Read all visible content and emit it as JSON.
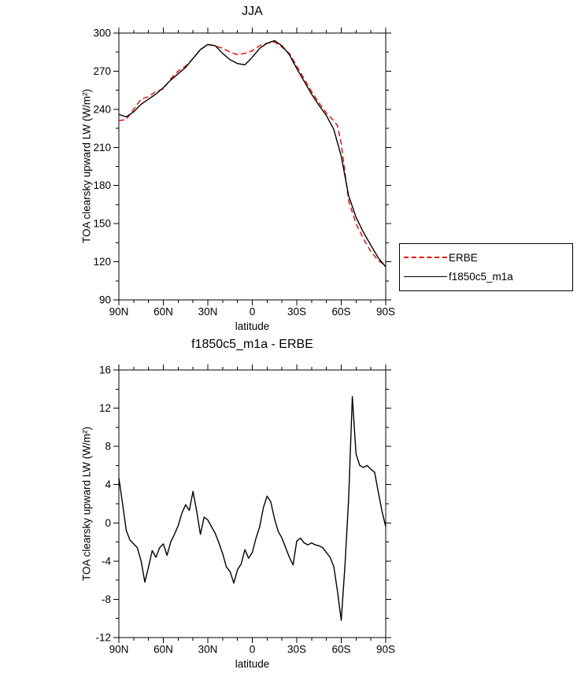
{
  "figure": {
    "background": "#ffffff"
  },
  "chart_data": {
    "note": "see charts array",
    "count": 2
  },
  "charts": [
    {
      "type": "line",
      "title": "JJA",
      "xlabel": "latitude",
      "ylabel": "TOA clearsky upward LW (W/m²)",
      "xlim": [
        90,
        -90
      ],
      "ylim": [
        90,
        300
      ],
      "xticks": [
        90,
        60,
        30,
        0,
        -30,
        -60,
        -90
      ],
      "xtick_labels": [
        "90N",
        "60N",
        "30N",
        "0",
        "30S",
        "60S",
        "90S"
      ],
      "yticks": [
        90,
        120,
        150,
        180,
        210,
        240,
        270,
        300
      ],
      "x_minor_step": 10,
      "y_minor_step": 15,
      "grid": false,
      "legend": {
        "position": "outside-right-bottom",
        "border": true
      },
      "series": [
        {
          "name": "ERBE",
          "color": "#ee0000",
          "style": "dashed",
          "x": [
            90,
            85,
            80,
            75,
            70,
            65,
            60,
            55,
            50,
            45,
            40,
            35,
            30,
            25,
            20,
            15,
            10,
            5,
            0,
            -5,
            -10,
            -15,
            -20,
            -25,
            -30,
            -35,
            -40,
            -45,
            -50,
            -55,
            -57.5,
            -60,
            -65,
            -70,
            -75,
            -80,
            -85,
            -90
          ],
          "y": [
            231,
            232,
            240,
            248,
            250,
            254,
            256,
            264,
            270,
            274,
            280,
            287,
            291,
            290,
            288,
            285,
            283,
            284,
            286,
            290,
            292,
            293,
            289,
            284,
            274,
            264,
            254,
            245,
            237,
            231,
            227,
            213,
            168,
            150,
            138,
            128,
            121,
            117
          ]
        },
        {
          "name": "f1850c5_m1a",
          "color": "#000000",
          "style": "solid",
          "x": [
            90,
            85,
            80,
            75,
            70,
            65,
            60,
            55,
            50,
            45,
            40,
            35,
            30,
            25,
            20,
            15,
            10,
            5,
            0,
            -5,
            -10,
            -15,
            -20,
            -25,
            -30,
            -35,
            -40,
            -45,
            -50,
            -55,
            -60,
            -65,
            -70,
            -75,
            -80,
            -85,
            -90
          ],
          "y": [
            236,
            234,
            238,
            244,
            248,
            252,
            257,
            263,
            268,
            273,
            280,
            287,
            291,
            290,
            284,
            279,
            276,
            275,
            281,
            288,
            292,
            294,
            290,
            283,
            272,
            262,
            252,
            243,
            235,
            224,
            203,
            172,
            155,
            143,
            133,
            123,
            116
          ]
        }
      ]
    },
    {
      "type": "line",
      "title": "f1850c5_m1a - ERBE",
      "xlabel": "latitude",
      "ylabel": "TOA clearsky upward LW (W/m²)",
      "xlim": [
        90,
        -90
      ],
      "ylim": [
        -12,
        16
      ],
      "xticks": [
        90,
        60,
        30,
        0,
        -30,
        -60,
        -90
      ],
      "xtick_labels": [
        "90N",
        "60N",
        "30N",
        "0",
        "30S",
        "60S",
        "90S"
      ],
      "yticks": [
        -12,
        -8,
        -4,
        0,
        4,
        8,
        12,
        16
      ],
      "x_minor_step": 10,
      "y_minor_step": 2,
      "grid": false,
      "legend": null,
      "series": [
        {
          "name": "f1850c5_m1a - ERBE",
          "color": "#000000",
          "style": "solid",
          "x": [
            90,
            87.5,
            85,
            82.5,
            80,
            77.5,
            75,
            72.5,
            70,
            67.5,
            65,
            62.5,
            60,
            57.5,
            55,
            52.5,
            50,
            47.5,
            45,
            42.5,
            40,
            37.5,
            35,
            32.5,
            30,
            27.5,
            25,
            22.5,
            20,
            17.5,
            15,
            12.5,
            10,
            7.5,
            5,
            2.5,
            0,
            -2.5,
            -5,
            -7.5,
            -10,
            -12.5,
            -15,
            -17.5,
            -20,
            -22.5,
            -25,
            -27.5,
            -30,
            -32.5,
            -35,
            -37.5,
            -40,
            -42.5,
            -45,
            -47.5,
            -50,
            -52.5,
            -55,
            -57.5,
            -60,
            -62.5,
            -65,
            -67.5,
            -70,
            -72.5,
            -75,
            -77.5,
            -80,
            -82.5,
            -85,
            -87.5,
            -90
          ],
          "y": [
            4.7,
            2.0,
            -0.8,
            -1.8,
            -2.2,
            -2.6,
            -4.0,
            -6.2,
            -4.6,
            -2.9,
            -3.6,
            -2.6,
            -2.2,
            -3.4,
            -2.0,
            -1.2,
            -0.3,
            1.0,
            1.9,
            1.3,
            3.3,
            1.2,
            -1.2,
            0.6,
            0.3,
            -0.4,
            -1.1,
            -2.1,
            -3.2,
            -4.6,
            -5.1,
            -6.3,
            -4.9,
            -4.3,
            -2.8,
            -3.7,
            -3.1,
            -1.6,
            -0.4,
            1.6,
            2.8,
            2.2,
            0.4,
            -0.9,
            -1.6,
            -2.6,
            -3.6,
            -4.4,
            -1.9,
            -1.6,
            -2.1,
            -2.3,
            -2.1,
            -2.3,
            -2.4,
            -2.6,
            -3.1,
            -3.6,
            -4.6,
            -7.2,
            -10.2,
            -4.5,
            2.5,
            13.2,
            7.2,
            6.0,
            5.8,
            6.0,
            5.6,
            5.3,
            3.2,
            1.2,
            -0.4
          ]
        }
      ]
    }
  ]
}
